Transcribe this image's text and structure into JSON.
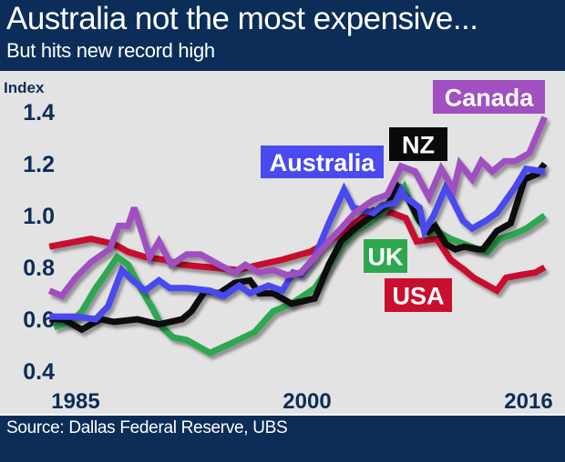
{
  "header": {
    "title": "Australia not the most expensive...",
    "subtitle": "But hits new record high"
  },
  "footer": {
    "source": "Source: Dallas Federal Reserve, UBS"
  },
  "colors": {
    "background": "#e3e3e3",
    "navy": "#0b2d58",
    "Canada": "#a050c0",
    "Australia": "#4a4af0",
    "NZ": "#0a0a0a",
    "UK": "#2ea84f",
    "USA": "#c8102e"
  },
  "chart_data": {
    "type": "line",
    "title": "Australia not the most expensive...",
    "subtitle": "But hits new record high",
    "xlabel": "",
    "ylabel": "Index",
    "xlim": [
      1983.3,
      2015.4
    ],
    "ylim": [
      0.4,
      1.4
    ],
    "x_ticks": [
      {
        "value": 1985,
        "label": "1985"
      },
      {
        "value": 2000,
        "label": "2000"
      },
      {
        "value": 2016,
        "label": "2016"
      }
    ],
    "y_ticks": [
      {
        "value": 1.4,
        "label": "1.4"
      },
      {
        "value": 1.2,
        "label": "1.2"
      },
      {
        "value": 1.0,
        "label": "1.0"
      },
      {
        "value": 0.8,
        "label": "0.8"
      },
      {
        "value": 0.6,
        "label": "0.6"
      },
      {
        "value": 0.4,
        "label": "0.4"
      }
    ],
    "grid": false,
    "legend": "inline-labels",
    "series": [
      {
        "name": "USA",
        "label": "USA",
        "color": "#c8102e",
        "points": [
          [
            1983.3,
            0.88
          ],
          [
            1986.0,
            0.91
          ],
          [
            1987.5,
            0.89
          ],
          [
            1988.4,
            0.86
          ],
          [
            1989.5,
            0.84
          ],
          [
            1990.7,
            0.83
          ],
          [
            1991.9,
            0.81
          ],
          [
            1993.7,
            0.8
          ],
          [
            1995.5,
            0.79
          ],
          [
            1996.9,
            0.81
          ],
          [
            1998.4,
            0.83
          ],
          [
            2000.2,
            0.86
          ],
          [
            2001.4,
            0.9
          ],
          [
            2002.8,
            0.96
          ],
          [
            2004.3,
            1.02
          ],
          [
            2005.5,
            1.01
          ],
          [
            2006.4,
            0.99
          ],
          [
            2007.1,
            0.9
          ],
          [
            2008.4,
            0.91
          ],
          [
            2009.3,
            0.83
          ],
          [
            2010.2,
            0.79
          ],
          [
            2010.8,
            0.76
          ],
          [
            2011.4,
            0.74
          ],
          [
            2012.3,
            0.71
          ],
          [
            2012.9,
            0.76
          ],
          [
            2013.8,
            0.77
          ],
          [
            2014.8,
            0.78
          ],
          [
            2015.4,
            0.8
          ]
        ]
      },
      {
        "name": "UK",
        "label": "UK",
        "color": "#2ea84f",
        "points": [
          [
            1983.6,
            0.57
          ],
          [
            1984.7,
            0.59
          ],
          [
            1985.4,
            0.63
          ],
          [
            1986.3,
            0.72
          ],
          [
            1986.9,
            0.77
          ],
          [
            1987.7,
            0.84
          ],
          [
            1988.4,
            0.81
          ],
          [
            1989.3,
            0.71
          ],
          [
            1990.0,
            0.64
          ],
          [
            1990.6,
            0.57
          ],
          [
            1991.3,
            0.53
          ],
          [
            1992.2,
            0.52
          ],
          [
            1993.7,
            0.47
          ],
          [
            1995.2,
            0.51
          ],
          [
            1996.6,
            0.55
          ],
          [
            1997.8,
            0.63
          ],
          [
            1999.0,
            0.66
          ],
          [
            2000.5,
            0.72
          ],
          [
            2001.4,
            0.8
          ],
          [
            2002.2,
            0.88
          ],
          [
            2003.1,
            0.94
          ],
          [
            2004.0,
            0.97
          ],
          [
            2004.9,
            1.01
          ],
          [
            2005.8,
            1.07
          ],
          [
            2006.3,
            1.11
          ],
          [
            2007.1,
            0.99
          ],
          [
            2007.9,
            0.93
          ],
          [
            2008.4,
            0.94
          ],
          [
            2009.3,
            0.91
          ],
          [
            2010.2,
            0.89
          ],
          [
            2011.1,
            0.87
          ],
          [
            2011.7,
            0.86
          ],
          [
            2012.5,
            0.91
          ],
          [
            2013.5,
            0.93
          ],
          [
            2014.2,
            0.95
          ],
          [
            2015.4,
            1.0
          ]
        ]
      },
      {
        "name": "NZ",
        "label": "NZ",
        "color": "#0a0a0a",
        "points": [
          [
            1983.3,
            0.6
          ],
          [
            1984.2,
            0.6
          ],
          [
            1985.4,
            0.56
          ],
          [
            1986.6,
            0.6
          ],
          [
            1987.5,
            0.59
          ],
          [
            1989.0,
            0.6
          ],
          [
            1990.4,
            0.58
          ],
          [
            1991.9,
            0.6
          ],
          [
            1992.5,
            0.63
          ],
          [
            1993.4,
            0.71
          ],
          [
            1994.3,
            0.7
          ],
          [
            1995.3,
            0.74
          ],
          [
            1996.3,
            0.75
          ],
          [
            1996.9,
            0.7
          ],
          [
            1997.8,
            0.7
          ],
          [
            1999.0,
            0.66
          ],
          [
            2000.5,
            0.68
          ],
          [
            2001.4,
            0.81
          ],
          [
            2002.2,
            0.9
          ],
          [
            2003.1,
            0.95
          ],
          [
            2004.0,
            0.99
          ],
          [
            2005.2,
            1.04
          ],
          [
            2005.9,
            1.11
          ],
          [
            2006.6,
            1.06
          ],
          [
            2007.3,
            0.98
          ],
          [
            2007.9,
            0.94
          ],
          [
            2008.3,
            0.96
          ],
          [
            2009.0,
            0.89
          ],
          [
            2009.6,
            0.87
          ],
          [
            2010.2,
            0.88
          ],
          [
            2011.1,
            0.87
          ],
          [
            2011.4,
            0.87
          ],
          [
            2012.3,
            0.94
          ],
          [
            2013.2,
            0.97
          ],
          [
            2014.1,
            1.14
          ],
          [
            2014.9,
            1.16
          ],
          [
            2015.4,
            1.2
          ]
        ]
      },
      {
        "name": "Australia",
        "label": "Australia",
        "color": "#4a4af0",
        "points": [
          [
            1983.3,
            0.61
          ],
          [
            1985.1,
            0.61
          ],
          [
            1986.3,
            0.6
          ],
          [
            1987.1,
            0.65
          ],
          [
            1988.0,
            0.79
          ],
          [
            1988.7,
            0.75
          ],
          [
            1989.5,
            0.71
          ],
          [
            1990.4,
            0.75
          ],
          [
            1991.1,
            0.72
          ],
          [
            1992.2,
            0.72
          ],
          [
            1993.7,
            0.71
          ],
          [
            1994.6,
            0.69
          ],
          [
            1995.6,
            0.73
          ],
          [
            1996.3,
            0.7
          ],
          [
            1997.5,
            0.73
          ],
          [
            1998.4,
            0.71
          ],
          [
            1999.1,
            0.78
          ],
          [
            1999.6,
            0.77
          ],
          [
            2000.5,
            0.84
          ],
          [
            2001.4,
            0.97
          ],
          [
            2002.4,
            1.1
          ],
          [
            2003.0,
            1.03
          ],
          [
            2003.7,
            1.02
          ],
          [
            2004.3,
            1.01
          ],
          [
            2004.9,
            1.04
          ],
          [
            2005.7,
            1.05
          ],
          [
            2006.1,
            1.1
          ],
          [
            2006.4,
            1.07
          ],
          [
            2007.3,
            1.03
          ],
          [
            2007.6,
            0.94
          ],
          [
            2008.2,
            1.0
          ],
          [
            2009.0,
            1.11
          ],
          [
            2010.1,
            0.98
          ],
          [
            2010.7,
            0.95
          ],
          [
            2011.6,
            0.98
          ],
          [
            2012.3,
            1.01
          ],
          [
            2013.5,
            1.11
          ],
          [
            2014.2,
            1.18
          ],
          [
            2015.4,
            1.17
          ]
        ]
      },
      {
        "name": "Canada",
        "label": "Canada",
        "color": "#a050c0",
        "points": [
          [
            1983.3,
            0.71
          ],
          [
            1984.1,
            0.69
          ],
          [
            1985.0,
            0.76
          ],
          [
            1986.0,
            0.82
          ],
          [
            1987.2,
            0.87
          ],
          [
            1987.8,
            0.96
          ],
          [
            1988.4,
            0.96
          ],
          [
            1988.8,
            1.03
          ],
          [
            1989.8,
            0.84
          ],
          [
            1990.4,
            0.9
          ],
          [
            1991.2,
            0.81
          ],
          [
            1992.2,
            0.85
          ],
          [
            1993.1,
            0.85
          ],
          [
            1994.3,
            0.81
          ],
          [
            1995.3,
            0.78
          ],
          [
            1996.0,
            0.81
          ],
          [
            1996.9,
            0.78
          ],
          [
            1997.8,
            0.79
          ],
          [
            1998.7,
            0.77
          ],
          [
            1999.6,
            0.78
          ],
          [
            2000.5,
            0.84
          ],
          [
            2001.4,
            0.9
          ],
          [
            2002.2,
            0.95
          ],
          [
            2003.1,
            1.01
          ],
          [
            2004.3,
            1.06
          ],
          [
            2005.2,
            1.08
          ],
          [
            2006.1,
            1.19
          ],
          [
            2007.0,
            1.17
          ],
          [
            2007.9,
            1.07
          ],
          [
            2008.7,
            1.18
          ],
          [
            2009.5,
            1.1
          ],
          [
            2009.9,
            1.2
          ],
          [
            2010.7,
            1.14
          ],
          [
            2011.3,
            1.21
          ],
          [
            2012.0,
            1.17
          ],
          [
            2012.8,
            1.21
          ],
          [
            2013.5,
            1.21
          ],
          [
            2014.4,
            1.24
          ],
          [
            2014.9,
            1.31
          ],
          [
            2015.4,
            1.38
          ]
        ]
      }
    ],
    "annotations": [
      {
        "series": "Canada",
        "text": "Canada"
      },
      {
        "series": "NZ",
        "text": "NZ"
      },
      {
        "series": "Australia",
        "text": "Australia"
      },
      {
        "series": "UK",
        "text": "UK"
      },
      {
        "series": "USA",
        "text": "USA"
      }
    ]
  }
}
